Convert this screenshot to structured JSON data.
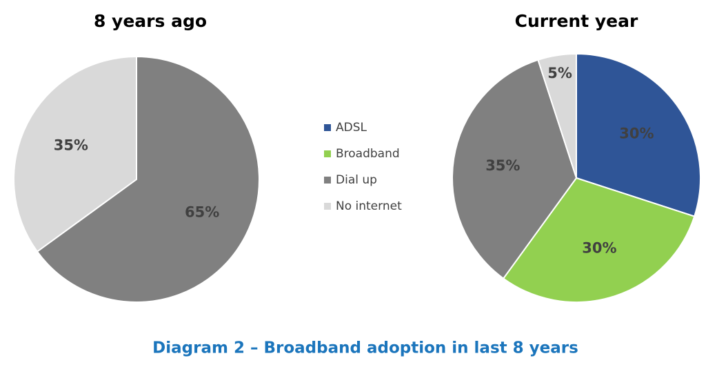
{
  "chart_data": [
    {
      "type": "pie",
      "title": "8 years ago",
      "categories": [
        "Dial up",
        "No internet"
      ],
      "values": [
        65,
        35
      ],
      "value_labels": [
        "65%",
        "35%"
      ],
      "colors": [
        "#808080",
        "#d9d9d9"
      ]
    },
    {
      "type": "pie",
      "title": "Current year",
      "categories": [
        "ADSL",
        "Broadband",
        "Dial up",
        "No internet"
      ],
      "values": [
        30,
        30,
        35,
        5
      ],
      "value_labels": [
        "30%",
        "30%",
        "35%",
        "5%"
      ],
      "colors": [
        "#2f5597",
        "#92d050",
        "#808080",
        "#d9d9d9"
      ]
    }
  ],
  "caption": "Diagram 2 – Broadband adoption in last 8 years"
}
